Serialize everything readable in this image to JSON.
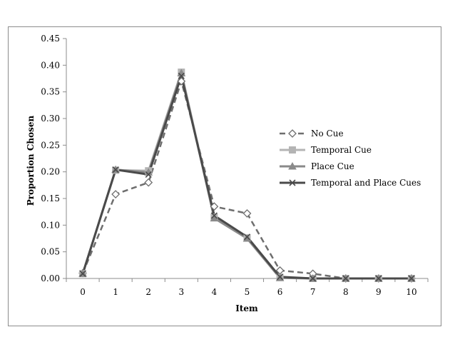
{
  "chart_data": {
    "type": "line",
    "title": "",
    "xlabel": "Item",
    "ylabel": "Proportion Chosen",
    "x": [
      0,
      1,
      2,
      3,
      4,
      5,
      6,
      7,
      8,
      9,
      10
    ],
    "x_tick_labels": [
      "0",
      "1",
      "2",
      "3",
      "4",
      "5",
      "6",
      "7",
      "8",
      "9",
      "10"
    ],
    "ylim": [
      0,
      0.45
    ],
    "y_ticks": [
      0,
      0.05,
      0.1,
      0.15,
      0.2,
      0.25,
      0.3,
      0.35,
      0.4,
      0.45
    ],
    "y_tick_labels": [
      "0.00",
      "0.05",
      "0.10",
      "0.15",
      "0.20",
      "0.25",
      "0.30",
      "0.35",
      "0.40",
      "0.45"
    ],
    "grid": false,
    "legend_position": "right",
    "series": [
      {
        "name": "No Cue",
        "color": "#6e6e6e",
        "dash": "dashed",
        "marker": "diamond-open",
        "values": [
          0.01,
          0.158,
          0.18,
          0.37,
          0.135,
          0.122,
          0.015,
          0.009,
          0.0,
          0.0,
          0.0
        ]
      },
      {
        "name": "Temporal Cue",
        "color": "#b4b4b4",
        "dash": "solid",
        "marker": "square",
        "values": [
          0.009,
          0.203,
          0.202,
          0.387,
          0.115,
          0.076,
          0.002,
          0.0,
          0.0,
          0.0,
          0.0
        ]
      },
      {
        "name": "Place Cue",
        "color": "#8a8a8a",
        "dash": "solid",
        "marker": "triangle",
        "values": [
          0.009,
          0.204,
          0.199,
          0.385,
          0.113,
          0.075,
          0.001,
          0.0,
          0.0,
          0.0,
          0.0
        ]
      },
      {
        "name": "Temporal and Place Cues",
        "color": "#4a4a4a",
        "dash": "solid",
        "marker": "x",
        "values": [
          0.009,
          0.204,
          0.195,
          0.38,
          0.118,
          0.078,
          0.003,
          0.0,
          0.0,
          0.0,
          0.0
        ]
      }
    ]
  }
}
